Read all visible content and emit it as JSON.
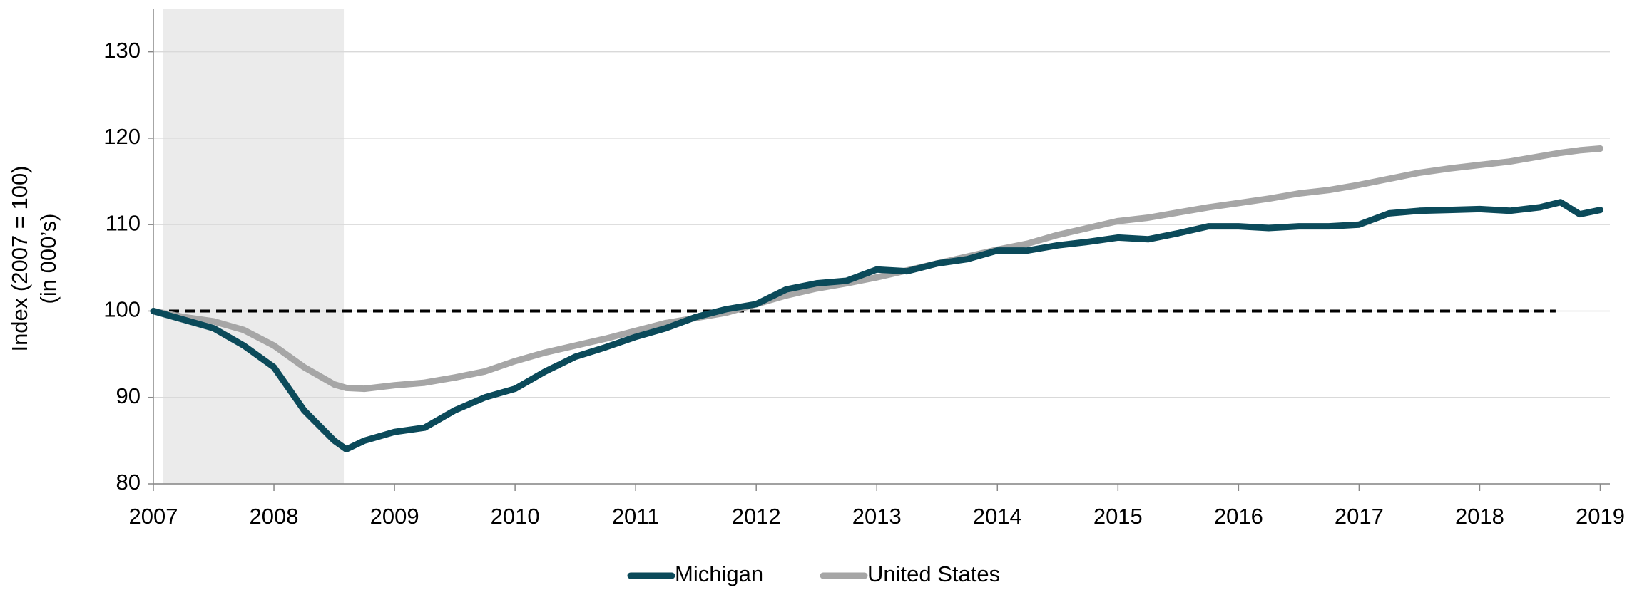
{
  "chart_data": {
    "type": "line",
    "y_label": [
      "Index (2007 = 100)",
      "(in 000’s)"
    ],
    "x": [
      2007,
      2007.25,
      2007.5,
      2007.75,
      2008,
      2008.25,
      2008.5,
      2008.6,
      2008.75,
      2009,
      2009.25,
      2009.5,
      2009.75,
      2010,
      2010.25,
      2010.5,
      2010.75,
      2011,
      2011.25,
      2011.5,
      2011.75,
      2012,
      2012.25,
      2012.5,
      2012.75,
      2013,
      2013.25,
      2013.5,
      2013.75,
      2014,
      2014.25,
      2014.5,
      2014.75,
      2015,
      2015.25,
      2015.5,
      2015.75,
      2016,
      2016.25,
      2016.5,
      2016.75,
      2017,
      2017.25,
      2017.5,
      2017.75,
      2018,
      2018.25,
      2018.5,
      2018.67,
      2018.83,
      2019
    ],
    "series": [
      {
        "name": "Michigan",
        "color": "#0b4a5a",
        "values": [
          100,
          99,
          98,
          96,
          93.5,
          88.5,
          85,
          84,
          85,
          86,
          86.5,
          88.5,
          90,
          91,
          93,
          94.7,
          95.8,
          97,
          98,
          99.3,
          100.2,
          100.8,
          102.5,
          103.2,
          103.5,
          104.8,
          104.6,
          105.5,
          106,
          107,
          107,
          107.6,
          108,
          108.5,
          108.3,
          109,
          109.8,
          109.8,
          109.6,
          109.8,
          109.8,
          110,
          111.3,
          111.6,
          111.7,
          111.8,
          111.6,
          112,
          112.6,
          111.2,
          111.7
        ]
      },
      {
        "name": "United States",
        "color": "#a6a6a6",
        "values": [
          100,
          99.3,
          98.8,
          97.8,
          96,
          93.5,
          91.5,
          91.1,
          91,
          91.4,
          91.7,
          92.3,
          93,
          94.2,
          95.2,
          96,
          96.8,
          97.7,
          98.6,
          99.2,
          99.8,
          100.8,
          101.8,
          102.6,
          103.2,
          103.9,
          104.7,
          105.5,
          106.3,
          107.1,
          107.8,
          108.8,
          109.6,
          110.4,
          110.8,
          111.4,
          112,
          112.5,
          113,
          113.6,
          114,
          114.6,
          115.3,
          116,
          116.5,
          116.9,
          117.3,
          117.9,
          118.3,
          118.6,
          118.8
        ]
      }
    ],
    "xlim": [
      2007,
      2019.08
    ],
    "xticks": [
      2007,
      2008,
      2009,
      2010,
      2011,
      2012,
      2013,
      2014,
      2015,
      2016,
      2017,
      2018,
      2019
    ],
    "ylim": [
      80,
      135
    ],
    "yticks": [
      80,
      90,
      100,
      110,
      120,
      130
    ],
    "grid": true,
    "shaded_region": {
      "x": [
        2007.08,
        2008.58
      ],
      "color": "#ebebeb"
    },
    "reference_line": {
      "value": 100,
      "x": [
        2007,
        2018.63
      ],
      "color": "#000000"
    },
    "legend": "bottom"
  }
}
